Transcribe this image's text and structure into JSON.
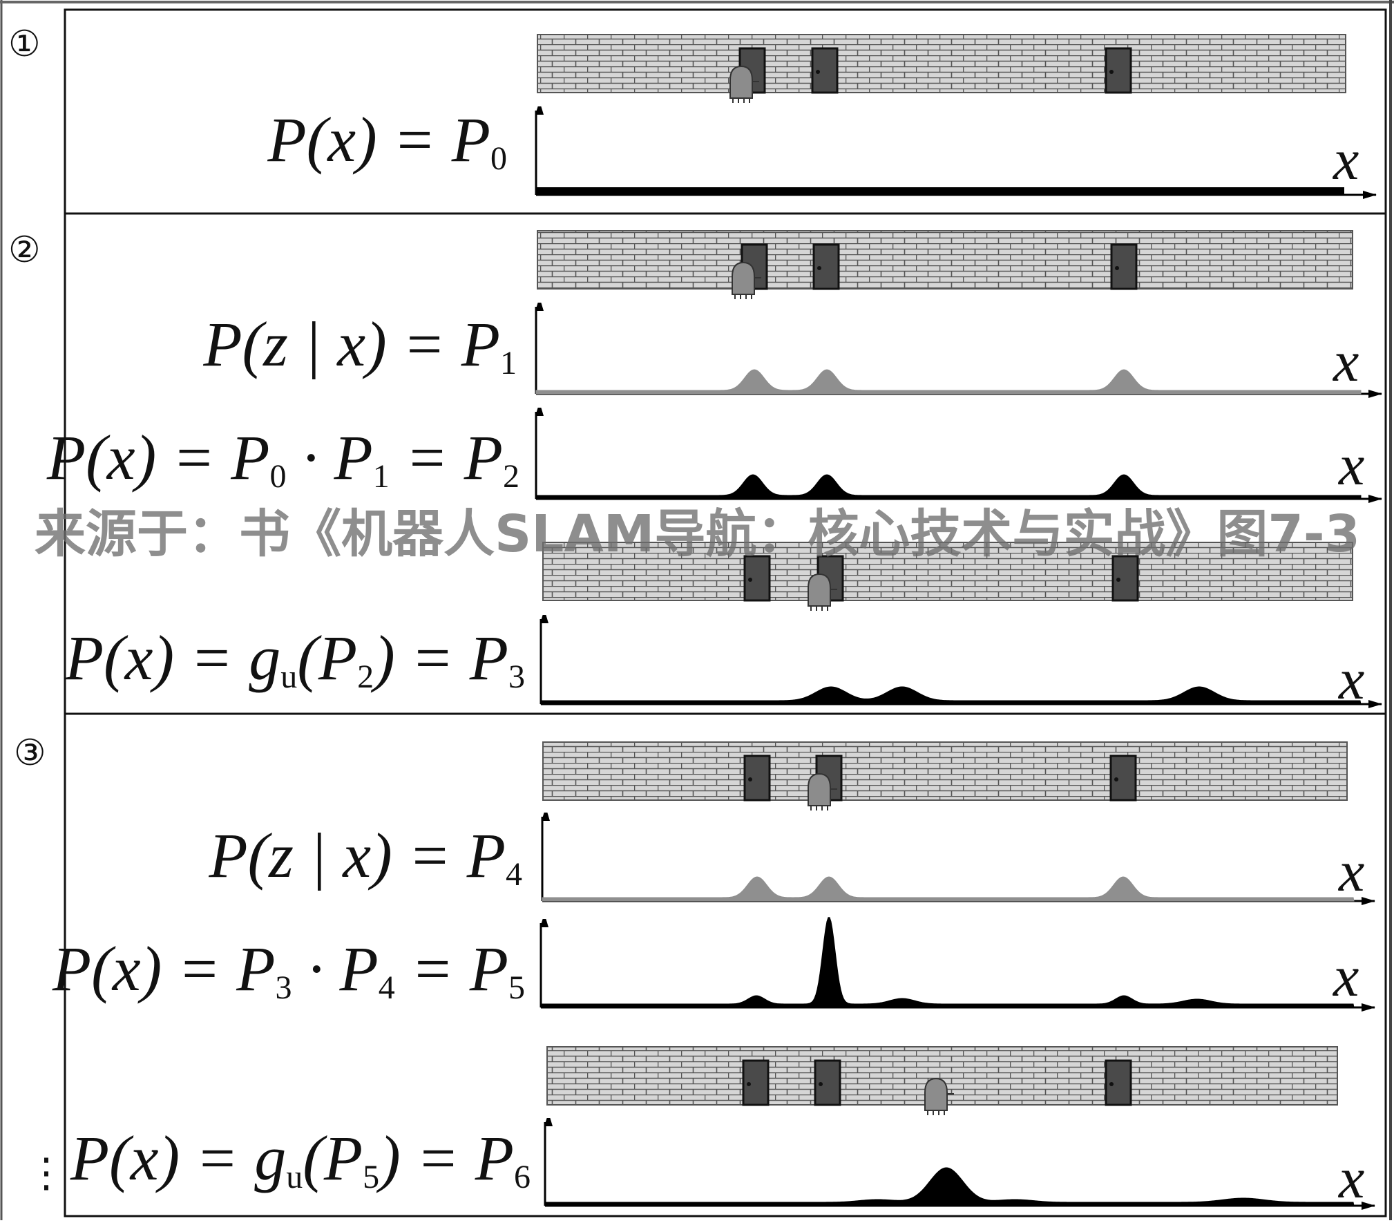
{
  "steps": [
    {
      "marker": "①",
      "formulas": [
        {
          "html": "P(x) = P<sub>0</sub>"
        }
      ]
    },
    {
      "marker": "②",
      "formulas": [
        {
          "html": "P(z | x) = P<sub>1</sub>"
        },
        {
          "html": "P(x) = P<sub>0</sub> · P<sub>1</sub> = P<sub>2</sub>"
        },
        {
          "html": "P(x) = g<sub>u</sub>(P<sub>2</sub>) = P<sub>3</sub>"
        }
      ]
    },
    {
      "marker": "③",
      "formulas": [
        {
          "html": "P(z | x) = P<sub>4</sub>"
        },
        {
          "html": "P(x) = P<sub>3</sub> · P<sub>4</sub> = P<sub>5</sub>"
        },
        {
          "html": "P(x) = g<sub>u</sub>(P<sub>5</sub>) = P<sub>6</sub>"
        }
      ]
    }
  ],
  "axis_label": "x",
  "continuation": "⋮",
  "watermark": "来源于：书《机器人SLAM导航：核心技术与实战》图7-3",
  "colors": {
    "brick_fill": "#d6d6d6",
    "mortar": "#555555",
    "door": "#4a4a4a",
    "robot": "#8c8c8c",
    "measurement_curve": "#8f8f8f",
    "belief_curve": "#000000"
  },
  "icons": {
    "robot": "robot-icon",
    "door": "door-icon",
    "wall": "brick-wall"
  }
}
